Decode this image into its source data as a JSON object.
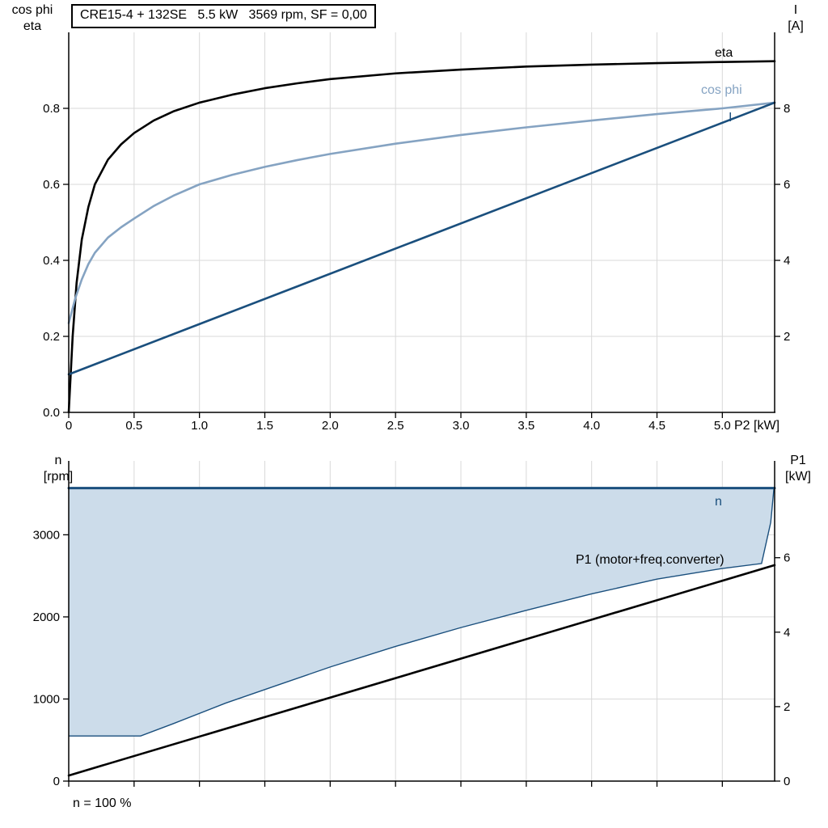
{
  "header": {
    "title_box": "CRE15-4 + 132SE   5.5 kW   3569 rpm, SF = 0,00"
  },
  "colors": {
    "black": "#000000",
    "steel": "#85A3C2",
    "dark_blue": "#1A4F7D",
    "area_fill": "#CCDCEA",
    "grid": "#D9D9D9"
  },
  "labels": {
    "top_left_1": "cos phi",
    "top_left_2": "eta",
    "top_right_1": "I",
    "top_right_2": "[A]",
    "bottom_left_1": "n",
    "bottom_left_2": "[rpm]",
    "bottom_right_1": "P1",
    "bottom_right_2": "[kW]",
    "eta_curve": "eta",
    "cos_phi_curve": "cos phi",
    "current_curve": "I",
    "n_curve": "n",
    "p1_curve": "P1 (motor+freq.converter)",
    "x_unit": "P2 [kW]",
    "footnote": "n = 100 %"
  },
  "chart_data": [
    {
      "id": "motor-performance",
      "type": "line",
      "title": "CRE15-4 + 132SE 5.5 kW 3569 rpm, SF = 0,00",
      "xlabel": "P2 [kW]",
      "ylabel_left": "cos phi / eta",
      "ylabel_right": "I [A]",
      "xlim": [
        0,
        5.4
      ],
      "ylim_left": [
        0,
        1.0
      ],
      "ylim_right": [
        0,
        10
      ],
      "xticks": [
        0,
        0.5,
        1,
        1.5,
        2,
        2.5,
        3,
        3.5,
        4,
        4.5,
        5
      ],
      "xtick_labels": [
        "0",
        "0.5",
        "1.0",
        "1.5",
        "2.0",
        "2.5",
        "3.0",
        "3.5",
        "4.0",
        "4.5",
        "5.0"
      ],
      "yticks_left": [
        0,
        0.2,
        0.4,
        0.6,
        0.8
      ],
      "ytick_labels_left": [
        "0.0",
        "0.2",
        "0.4",
        "0.6",
        "0.8"
      ],
      "yticks_right": [
        2,
        4,
        6,
        8
      ],
      "ytick_labels_right": [
        "2",
        "4",
        "6",
        "8"
      ],
      "grid": true,
      "series": [
        {
          "id": "eta",
          "name": "eta",
          "axis": "left",
          "color": "black",
          "width": 2.6,
          "points": [
            [
              0,
              0
            ],
            [
              0.03,
              0.2
            ],
            [
              0.06,
              0.34
            ],
            [
              0.1,
              0.455
            ],
            [
              0.15,
              0.54
            ],
            [
              0.2,
              0.6
            ],
            [
              0.3,
              0.665
            ],
            [
              0.4,
              0.705
            ],
            [
              0.5,
              0.735
            ],
            [
              0.65,
              0.768
            ],
            [
              0.8,
              0.792
            ],
            [
              1,
              0.815
            ],
            [
              1.25,
              0.836
            ],
            [
              1.5,
              0.853
            ],
            [
              1.75,
              0.866
            ],
            [
              2,
              0.877
            ],
            [
              2.5,
              0.892
            ],
            [
              3,
              0.902
            ],
            [
              3.5,
              0.91
            ],
            [
              4,
              0.915
            ],
            [
              4.5,
              0.919
            ],
            [
              5,
              0.922
            ],
            [
              5.4,
              0.924
            ]
          ]
        },
        {
          "id": "cos-phi",
          "name": "cos phi",
          "axis": "left",
          "color": "steel",
          "width": 2.6,
          "points": [
            [
              0,
              0.235
            ],
            [
              0.05,
              0.3
            ],
            [
              0.1,
              0.35
            ],
            [
              0.15,
              0.39
            ],
            [
              0.2,
              0.42
            ],
            [
              0.3,
              0.46
            ],
            [
              0.4,
              0.487
            ],
            [
              0.5,
              0.51
            ],
            [
              0.65,
              0.543
            ],
            [
              0.8,
              0.57
            ],
            [
              1,
              0.6
            ],
            [
              1.25,
              0.625
            ],
            [
              1.5,
              0.646
            ],
            [
              1.75,
              0.664
            ],
            [
              2,
              0.68
            ],
            [
              2.5,
              0.707
            ],
            [
              3,
              0.73
            ],
            [
              3.5,
              0.75
            ],
            [
              4,
              0.768
            ],
            [
              4.5,
              0.785
            ],
            [
              5,
              0.8
            ],
            [
              5.4,
              0.815
            ]
          ]
        },
        {
          "id": "current",
          "name": "I",
          "axis": "right",
          "color": "dark_blue",
          "width": 2.6,
          "points": [
            [
              0,
              1.0
            ],
            [
              5.4,
              8.15
            ]
          ]
        }
      ]
    },
    {
      "id": "speed-and-power",
      "type": "line",
      "xlabel": "",
      "ylabel_left": "n [rpm]",
      "ylabel_right": "P1 [kW]",
      "xlim": [
        0,
        5.4
      ],
      "ylim_left": [
        0,
        3900
      ],
      "ylim_right": [
        0,
        8.6
      ],
      "xticks": [
        0,
        0.5,
        1,
        1.5,
        2,
        2.5,
        3,
        3.5,
        4,
        4.5,
        5
      ],
      "yticks_left": [
        0,
        1000,
        2000,
        3000
      ],
      "ytick_labels_left": [
        "0",
        "1000",
        "2000",
        "3000"
      ],
      "yticks_right": [
        0,
        2,
        4,
        6
      ],
      "ytick_labels_right": [
        "0",
        "2",
        "4",
        "6"
      ],
      "grid": true,
      "area": {
        "name": "speed-control-range",
        "fill_color": "area_fill",
        "line_color": "dark_blue",
        "top": 3569,
        "boundary": [
          [
            0,
            550
          ],
          [
            0.55,
            550
          ],
          [
            0.8,
            700
          ],
          [
            1.2,
            950
          ],
          [
            1.6,
            1170
          ],
          [
            2,
            1390
          ],
          [
            2.5,
            1640
          ],
          [
            3,
            1870
          ],
          [
            3.5,
            2080
          ],
          [
            4,
            2280
          ],
          [
            4.5,
            2460
          ],
          [
            5,
            2590
          ],
          [
            5.3,
            2650
          ],
          [
            5.37,
            3150
          ],
          [
            5.395,
            3569
          ]
        ]
      },
      "series": [
        {
          "id": "n",
          "name": "n",
          "axis": "left",
          "color": "dark_blue",
          "width": 3,
          "points": [
            [
              0,
              3569
            ],
            [
              5.4,
              3569
            ]
          ]
        },
        {
          "id": "p1",
          "name": "P1 (motor+freq.converter)",
          "axis": "right",
          "color": "black",
          "width": 2.6,
          "points": [
            [
              0,
              0.15
            ],
            [
              5.4,
              5.8
            ]
          ]
        }
      ]
    }
  ]
}
